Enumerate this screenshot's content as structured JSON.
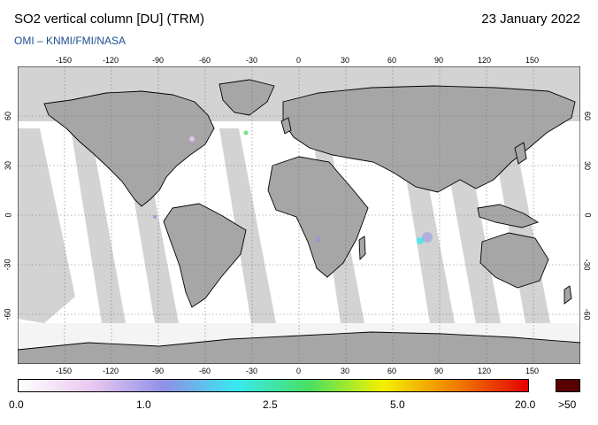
{
  "header": {
    "title": "SO2 vertical column [DU] (TRM)",
    "date": "23 January 2022",
    "credit": "OMI  –  KNMI/FMI/NASA"
  },
  "map": {
    "longitude_ticks": [
      "-150",
      "-120",
      "-90",
      "-60",
      "-30",
      "0",
      "30",
      "60",
      "90",
      "120",
      "150"
    ],
    "latitude_ticks": [
      "60",
      "30",
      "0",
      "-30",
      "-60"
    ],
    "colors": {
      "land": "#a6a6a6",
      "nodata": "#d3d3d3",
      "ocean": "#ffffff",
      "coast": "#000000"
    }
  },
  "colorbar": {
    "labels": [
      "0.0",
      "1.0",
      "2.5",
      "5.0",
      "20.0",
      ">50"
    ],
    "colors": [
      "#ffffff",
      "#e9c8f0",
      "#9090e6",
      "#38e8f0",
      "#48e060",
      "#f4f000",
      "#f08000",
      "#e60000"
    ],
    "max_color": "#5a0000"
  }
}
